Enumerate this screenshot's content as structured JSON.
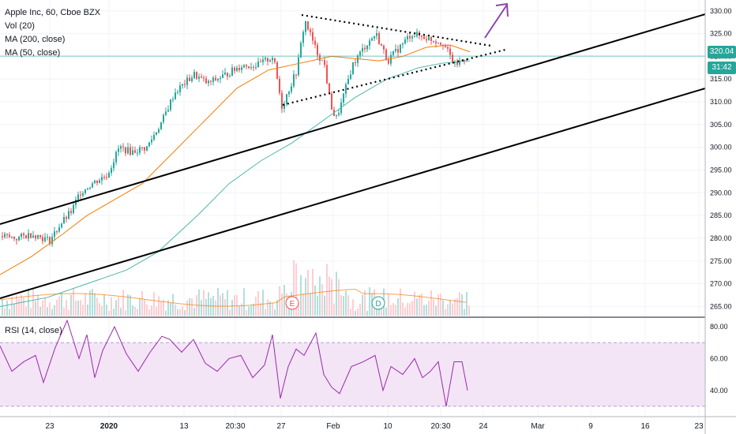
{
  "header": {
    "symbol_title": "Apple Inc, 60, Cboe BZX",
    "vol_label": "Vol (20)",
    "ma200_label": "MA (200, close)",
    "ma50_label": "MA (50, close)",
    "rsi_label": "RSI (14, close)"
  },
  "price_axis": {
    "ticks": [
      "330.00",
      "325.00",
      "320.00",
      "315.00",
      "310.00",
      "305.00",
      "300.00",
      "295.00",
      "290.00",
      "285.00",
      "280.00",
      "275.00",
      "270.00",
      "265.00"
    ],
    "last_price": "320.04",
    "countdown": "31:42"
  },
  "rsi_axis": {
    "ticks": [
      "80.00",
      "60.00",
      "40.00"
    ]
  },
  "time_axis": {
    "ticks": [
      "23",
      "2020",
      "13",
      "20:30",
      "27",
      "Feb",
      "10",
      "20:30",
      "24",
      "Mar",
      "9",
      "16",
      "23"
    ]
  },
  "markers": {
    "earnings": "E",
    "dividend": "D"
  },
  "colors": {
    "up": "#26a69a",
    "down": "#ef5350",
    "ma200": "#4db6ac",
    "ma50": "#f57c00",
    "rsi": "#9c27b0",
    "rsi_band": "#f3e5f5",
    "last_price_line": "#26a69a",
    "countdown_bg": "#26a69a",
    "arrow": "#8e44ad"
  },
  "chart_data": {
    "type": "candlestick",
    "ylim": [
      263,
      331
    ],
    "rsi_ylim": [
      25,
      85
    ],
    "rsi_band": [
      30,
      70
    ],
    "price_path": [
      [
        0,
        280.5
      ],
      [
        20,
        280
      ],
      [
        40,
        281
      ],
      [
        62,
        279.5
      ],
      [
        75,
        283
      ],
      [
        90,
        286
      ],
      [
        100,
        290
      ],
      [
        115,
        292
      ],
      [
        135,
        294
      ],
      [
        150,
        300
      ],
      [
        165,
        299
      ],
      [
        185,
        300
      ],
      [
        205,
        306
      ],
      [
        220,
        312
      ],
      [
        245,
        316
      ],
      [
        262,
        314
      ],
      [
        285,
        316
      ],
      [
        305,
        318
      ],
      [
        325,
        318
      ],
      [
        345,
        320
      ],
      [
        356,
        309
      ],
      [
        375,
        317
      ],
      [
        385,
        328
      ],
      [
        400,
        321
      ],
      [
        410,
        318
      ],
      [
        417,
        310
      ],
      [
        424,
        306
      ],
      [
        432,
        310
      ],
      [
        445,
        318
      ],
      [
        460,
        322
      ],
      [
        475,
        325
      ],
      [
        490,
        319
      ],
      [
        505,
        322
      ],
      [
        520,
        325
      ],
      [
        540,
        324
      ],
      [
        560,
        323
      ],
      [
        575,
        318
      ],
      [
        590,
        320
      ]
    ],
    "ma50_path": [
      [
        0,
        272
      ],
      [
        40,
        276
      ],
      [
        80,
        281
      ],
      [
        110,
        285
      ],
      [
        150,
        289
      ],
      [
        180,
        292
      ],
      [
        220,
        299
      ],
      [
        260,
        306
      ],
      [
        300,
        313
      ],
      [
        340,
        317
      ],
      [
        380,
        318.5
      ],
      [
        420,
        320
      ],
      [
        450,
        319.5
      ],
      [
        480,
        319
      ],
      [
        510,
        320
      ],
      [
        540,
        322
      ],
      [
        570,
        322.5
      ],
      [
        595,
        321
      ]
    ],
    "ma200_path": [
      [
        0,
        265
      ],
      [
        60,
        267
      ],
      [
        110,
        270
      ],
      [
        160,
        273
      ],
      [
        200,
        277
      ],
      [
        250,
        285
      ],
      [
        290,
        292
      ],
      [
        330,
        297
      ],
      [
        370,
        301
      ],
      [
        410,
        306
      ],
      [
        450,
        311
      ],
      [
        490,
        315
      ],
      [
        530,
        317.5
      ],
      [
        560,
        318.5
      ],
      [
        595,
        319
      ]
    ],
    "rsi_path": [
      [
        0,
        68
      ],
      [
        15,
        52
      ],
      [
        30,
        58
      ],
      [
        45,
        62
      ],
      [
        55,
        45
      ],
      [
        70,
        67
      ],
      [
        85,
        84
      ],
      [
        100,
        60
      ],
      [
        110,
        75
      ],
      [
        120,
        48
      ],
      [
        130,
        65
      ],
      [
        145,
        80
      ],
      [
        160,
        63
      ],
      [
        175,
        52
      ],
      [
        190,
        64
      ],
      [
        205,
        74
      ],
      [
        215,
        72
      ],
      [
        230,
        64
      ],
      [
        245,
        72
      ],
      [
        260,
        57
      ],
      [
        275,
        52
      ],
      [
        290,
        60
      ],
      [
        305,
        62
      ],
      [
        320,
        48
      ],
      [
        335,
        56
      ],
      [
        345,
        75
      ],
      [
        355,
        35
      ],
      [
        365,
        55
      ],
      [
        375,
        66
      ],
      [
        385,
        62
      ],
      [
        400,
        76
      ],
      [
        410,
        50
      ],
      [
        420,
        42
      ],
      [
        430,
        38
      ],
      [
        445,
        55
      ],
      [
        460,
        58
      ],
      [
        475,
        62
      ],
      [
        485,
        40
      ],
      [
        495,
        55
      ],
      [
        510,
        50
      ],
      [
        525,
        60
      ],
      [
        535,
        48
      ],
      [
        545,
        52
      ],
      [
        555,
        58
      ],
      [
        565,
        30
      ],
      [
        575,
        58
      ],
      [
        585,
        58
      ],
      [
        592,
        40
      ]
    ]
  }
}
